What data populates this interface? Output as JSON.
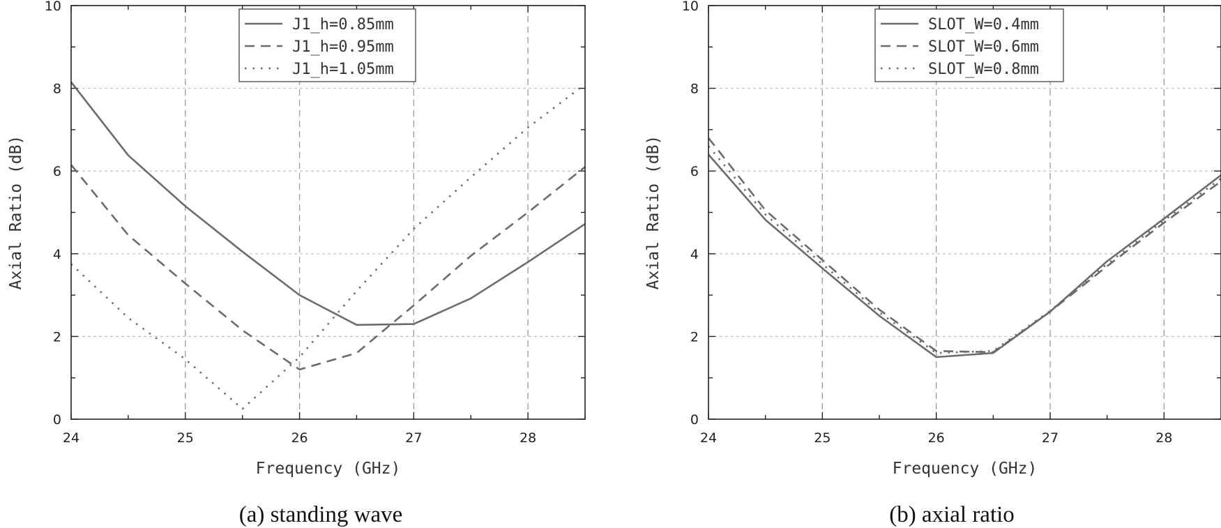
{
  "chart_data": [
    {
      "type": "line",
      "caption": "(a) standing wave",
      "xlabel": "Frequency (GHz)",
      "ylabel": "Axial Ratio (dB)",
      "xlim": [
        24,
        28.5
      ],
      "ylim": [
        0,
        10
      ],
      "xticks": [
        24,
        25,
        26,
        27,
        28
      ],
      "yticks": [
        0,
        2,
        4,
        6,
        8,
        10
      ],
      "grid": true,
      "legend_position": "top-center",
      "series": [
        {
          "name": "J1_h=0.85mm",
          "style": "solid",
          "x": [
            24,
            24.5,
            25,
            25.5,
            26,
            26.5,
            27,
            27.5,
            28,
            28.5
          ],
          "values": [
            8.15,
            6.38,
            5.15,
            4.05,
            3.0,
            2.28,
            2.3,
            2.92,
            3.8,
            4.72
          ]
        },
        {
          "name": "J1_h=0.95mm",
          "style": "dashed",
          "x": [
            24,
            24.5,
            25,
            25.5,
            26,
            26.5,
            27,
            27.5,
            28,
            28.5
          ],
          "values": [
            6.15,
            4.45,
            3.28,
            2.15,
            1.2,
            1.6,
            2.75,
            3.95,
            5.0,
            6.1
          ]
        },
        {
          "name": "J1_h=1.05mm",
          "style": "dotted",
          "x": [
            24,
            24.5,
            25,
            25.5,
            26,
            26.5,
            27,
            27.5,
            28,
            28.5
          ],
          "values": [
            3.75,
            2.45,
            1.45,
            0.25,
            1.5,
            3.1,
            4.6,
            5.85,
            7.05,
            8.1
          ]
        }
      ]
    },
    {
      "type": "line",
      "caption": "(b) axial ratio",
      "xlabel": "Frequency (GHz)",
      "ylabel": "Axial Ratio (dB)",
      "xlim": [
        24,
        28.5
      ],
      "ylim": [
        0,
        10
      ],
      "xticks": [
        24,
        25,
        26,
        27,
        28
      ],
      "yticks": [
        0,
        2,
        4,
        6,
        8,
        10
      ],
      "grid": true,
      "legend_position": "top-center",
      "series": [
        {
          "name": "SLOT_W=0.4mm",
          "style": "solid",
          "x": [
            24,
            24.5,
            25,
            25.5,
            26,
            26.5,
            27,
            27.5,
            28,
            28.5
          ],
          "values": [
            6.4,
            4.82,
            3.65,
            2.5,
            1.5,
            1.6,
            2.6,
            3.82,
            4.85,
            5.9
          ]
        },
        {
          "name": "SLOT_W=0.6mm",
          "style": "dashed",
          "x": [
            24,
            24.5,
            25,
            25.5,
            26,
            26.5,
            27,
            27.5,
            28,
            28.5
          ],
          "values": [
            6.8,
            5.05,
            3.85,
            2.65,
            1.65,
            1.62,
            2.6,
            3.7,
            4.75,
            5.75
          ]
        },
        {
          "name": "SLOT_W=0.8mm",
          "style": "dotted",
          "x": [
            24,
            24.5,
            25,
            25.5,
            26,
            26.5,
            27,
            27.5,
            28,
            28.5
          ],
          "values": [
            6.6,
            4.95,
            3.75,
            2.58,
            1.6,
            1.65,
            2.62,
            3.75,
            4.8,
            5.82
          ]
        }
      ]
    }
  ]
}
